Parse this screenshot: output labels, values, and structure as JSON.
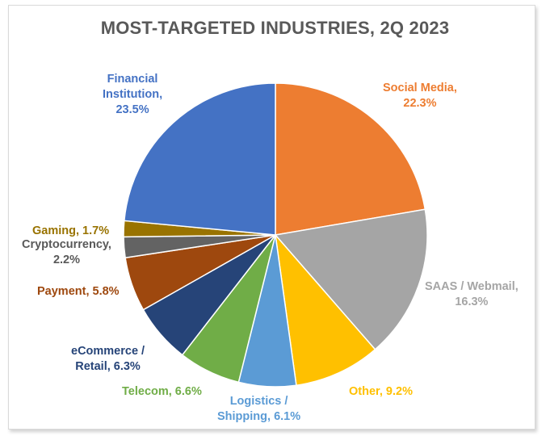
{
  "chart_data": {
    "type": "pie",
    "title": "MOST-TARGETED INDUSTRIES, 2Q 2023",
    "slices": [
      {
        "label": "Social Media",
        "value": 22.3,
        "value_label": "22.3%",
        "color": "#ED7D31"
      },
      {
        "label": "SAAS / Webmail",
        "value": 16.3,
        "value_label": "16.3%",
        "color": "#A5A5A5"
      },
      {
        "label": "Other",
        "value": 9.2,
        "value_label": "9.2%",
        "color": "#FFC000"
      },
      {
        "label": "Logistics / Shipping",
        "value": 6.1,
        "value_label": "6.1%",
        "color": "#5B9BD5"
      },
      {
        "label": "Telecom",
        "value": 6.6,
        "value_label": "6.6%",
        "color": "#70AD47"
      },
      {
        "label": "eCommerce / Retail",
        "value": 6.3,
        "value_label": "6.3%",
        "color": "#264478"
      },
      {
        "label": "Payment",
        "value": 5.8,
        "value_label": "5.8%",
        "color": "#9E480E"
      },
      {
        "label": "Cryptocurrency",
        "value": 2.2,
        "value_label": "2.2%",
        "color": "#636363"
      },
      {
        "label": "Gaming",
        "value": 1.7,
        "value_label": "1.7%",
        "color": "#997300"
      },
      {
        "label": "Financial Institution",
        "value": 23.5,
        "value_label": "23.5%",
        "color": "#4472C4"
      }
    ],
    "label_text": [
      [
        "Social Media,",
        "22.3%"
      ],
      [
        "SAAS / Webmail,",
        "16.3%"
      ],
      [
        "Other, 9.2%"
      ],
      [
        "Logistics /",
        "Shipping, 6.1%"
      ],
      [
        "Telecom, 6.6%"
      ],
      [
        "eCommerce /",
        "Retail, 6.3%"
      ],
      [
        "Payment, 5.8%"
      ],
      [
        "Cryptocurrency,",
        "2.2%"
      ],
      [
        "Gaming, 1.7%"
      ],
      [
        "Financial",
        "Institution,",
        "23.5%"
      ]
    ],
    "label_colors": [
      "#ED7D31",
      "#A5A5A5",
      "#FFC000",
      "#5B9BD5",
      "#70AD47",
      "#264478",
      "#9E480E",
      "#595959",
      "#997300",
      "#4472C4"
    ]
  }
}
